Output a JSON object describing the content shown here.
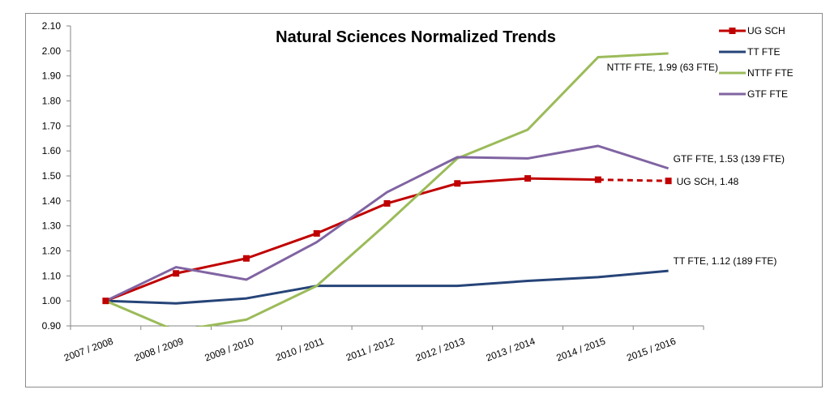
{
  "chart_data": {
    "type": "line",
    "title": "Natural Sciences Normalized Trends",
    "xlabel": "",
    "ylabel": "",
    "ylim": [
      0.9,
      2.1
    ],
    "ytick_step": 0.1,
    "y_ticks": [
      "0.90",
      "1.00",
      "1.10",
      "1.20",
      "1.30",
      "1.40",
      "1.50",
      "1.60",
      "1.70",
      "1.80",
      "1.90",
      "2.00",
      "2.10"
    ],
    "grid": false,
    "legend_position": "top-right",
    "categories": [
      "2007  / 2008",
      "2008  / 2009",
      "2009  / 2010",
      "2010  / 2011",
      "2011  / 2012",
      "2012  / 2013",
      "2013  / 2014",
      "2014  / 2015",
      "2015  / 2016"
    ],
    "series": [
      {
        "name": "UG SCH",
        "color": "#c00000",
        "marker": "square",
        "values": [
          1.0,
          1.11,
          1.17,
          1.27,
          1.39,
          1.47,
          1.49,
          1.485,
          1.48
        ],
        "dashed_last_segment": true
      },
      {
        "name": "TT FTE",
        "color": "#264478",
        "values": [
          1.0,
          0.99,
          1.01,
          1.06,
          1.06,
          1.06,
          1.08,
          1.095,
          1.12
        ]
      },
      {
        "name": "NTTF FTE",
        "color": "#9bbb59",
        "values": [
          1.0,
          0.88,
          0.925,
          1.06,
          1.31,
          1.57,
          1.685,
          1.975,
          1.99
        ]
      },
      {
        "name": "GTF FTE",
        "color": "#8064a2",
        "values": [
          1.0,
          1.135,
          1.085,
          1.235,
          1.435,
          1.575,
          1.57,
          1.62,
          1.53
        ]
      }
    ],
    "annotations": [
      {
        "text": "NTTF FTE,  1.99 (63 FTE)",
        "series": "NTTF FTE"
      },
      {
        "text": "GTF FTE,  1.53 (139 FTE)",
        "series": "GTF FTE"
      },
      {
        "text": "UG SCH,  1.48",
        "series": "UG SCH"
      },
      {
        "text": "TT FTE,  1.12 (189 FTE)",
        "series": "TT FTE"
      }
    ]
  }
}
